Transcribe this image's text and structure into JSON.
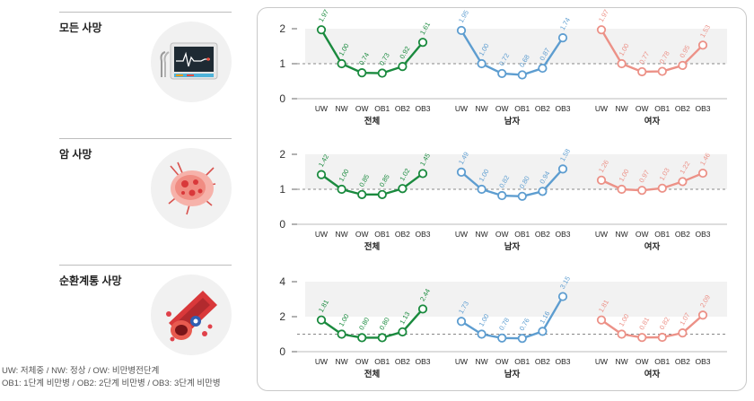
{
  "sections": [
    {
      "label": "모든 사망",
      "icon": "monitor-icon"
    },
    {
      "label": "암 사망",
      "icon": "cancer-cell-icon"
    },
    {
      "label": "순환계통 사망",
      "icon": "blood-vessel-icon"
    }
  ],
  "legend": {
    "line1": "UW: 저체중 / NW: 정상 / OW: 비만병전단계",
    "line2": "OB1: 1단계 비만병 / OB2: 2단계 비만병 / OB3: 3단계 비만병"
  },
  "colors": {
    "total": "#1a8a3e",
    "male": "#5d9dd0",
    "female": "#ec9187"
  },
  "chart_data": [
    {
      "type": "line",
      "title": "모든 사망",
      "categories": [
        "UW",
        "NW",
        "OW",
        "OB1",
        "OB2",
        "OB3"
      ],
      "ylim": [
        0,
        2
      ],
      "yticks": [
        0,
        1,
        2
      ],
      "reference_line": 1,
      "series": [
        {
          "name": "전체",
          "values": [
            1.97,
            1.0,
            0.74,
            0.73,
            0.92,
            1.61
          ]
        },
        {
          "name": "남자",
          "values": [
            1.95,
            1.0,
            0.72,
            0.68,
            0.87,
            1.74
          ]
        },
        {
          "name": "여자",
          "values": [
            1.97,
            1.0,
            0.77,
            0.78,
            0.95,
            1.53
          ]
        }
      ]
    },
    {
      "type": "line",
      "title": "암 사망",
      "categories": [
        "UW",
        "NW",
        "OW",
        "OB1",
        "OB2",
        "OB3"
      ],
      "ylim": [
        0,
        2
      ],
      "yticks": [
        0,
        1,
        2
      ],
      "reference_line": 1,
      "series": [
        {
          "name": "전체",
          "values": [
            1.42,
            1.0,
            0.85,
            0.85,
            1.02,
            1.45
          ]
        },
        {
          "name": "남자",
          "values": [
            1.49,
            1.0,
            0.82,
            0.8,
            0.94,
            1.58
          ]
        },
        {
          "name": "여자",
          "values": [
            1.26,
            1.0,
            0.97,
            1.03,
            1.22,
            1.46
          ]
        }
      ]
    },
    {
      "type": "line",
      "title": "순환계통 사망",
      "categories": [
        "UW",
        "NW",
        "OW",
        "OB1",
        "OB2",
        "OB3"
      ],
      "ylim": [
        0,
        4
      ],
      "yticks": [
        0,
        2,
        4
      ],
      "reference_line": 1,
      "series": [
        {
          "name": "전체",
          "values": [
            1.81,
            1.0,
            0.8,
            0.8,
            1.13,
            2.44
          ]
        },
        {
          "name": "남자",
          "values": [
            1.73,
            1.0,
            0.78,
            0.76,
            1.16,
            3.15
          ]
        },
        {
          "name": "여자",
          "values": [
            1.81,
            1.0,
            0.81,
            0.82,
            1.07,
            2.09
          ]
        }
      ]
    }
  ]
}
